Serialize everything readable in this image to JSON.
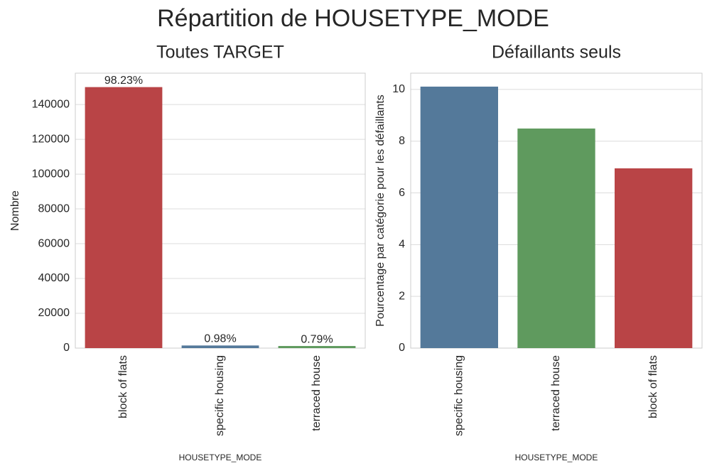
{
  "title": "Répartition de HOUSETYPE_MODE",
  "chart_data": [
    {
      "type": "bar",
      "title": "Toutes TARGET",
      "xlabel": "HOUSETYPE_MODE",
      "ylabel": "Nombre",
      "categories": [
        "block of flats",
        "specific housing",
        "terraced house"
      ],
      "values": [
        150000,
        1500,
        1200
      ],
      "annotations": [
        "98.23%",
        "0.98%",
        "0.79%"
      ],
      "colors": [
        "#b94446",
        "#54799a",
        "#5f9a5e"
      ],
      "ylim": [
        0,
        158000
      ],
      "yticks": [
        0,
        20000,
        40000,
        60000,
        80000,
        100000,
        120000,
        140000
      ],
      "grid": true
    },
    {
      "type": "bar",
      "title": "Défaillants seuls",
      "xlabel": "HOUSETYPE_MODE",
      "ylabel": "Pourcentage par catégorie pour les défaillants",
      "categories": [
        "specific housing",
        "terraced house",
        "block of flats"
      ],
      "values": [
        10.11,
        8.49,
        6.95
      ],
      "colors": [
        "#54799a",
        "#5f9a5e",
        "#b94446"
      ],
      "ylim": [
        0,
        10.63
      ],
      "yticks": [
        0,
        2,
        4,
        6,
        8,
        10
      ],
      "grid": true
    }
  ]
}
